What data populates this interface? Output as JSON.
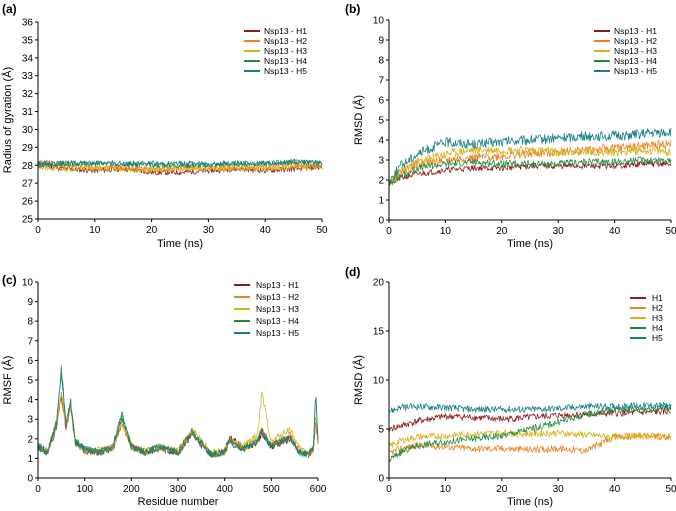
{
  "colors": {
    "H1": "#8b1a1a",
    "H2": "#f07f1e",
    "H3": "#d4b21c",
    "H4": "#1e8a3a",
    "H5": "#177f86"
  },
  "chart_data": [
    {
      "id": "a",
      "panel_label": "(a)",
      "type": "line",
      "title": "",
      "xlabel": "Time (ns)",
      "ylabel": "Radius of gyration (Å)",
      "xlim": [
        0,
        50
      ],
      "ylim": [
        25,
        36
      ],
      "xticks": [
        "0",
        "10",
        "20",
        "30",
        "40",
        "50"
      ],
      "yticks": [
        "25",
        "26",
        "27",
        "28",
        "29",
        "30",
        "31",
        "32",
        "33",
        "34",
        "35",
        "36"
      ],
      "legend_position": "top-right",
      "series": [
        {
          "name": "Nsp13 - H1",
          "color_key": "H1",
          "x": [
            0,
            5,
            10,
            15,
            20,
            25,
            30,
            35,
            40,
            45,
            50
          ],
          "values": [
            28.0,
            27.8,
            27.7,
            27.8,
            27.6,
            27.6,
            27.7,
            27.8,
            27.7,
            27.8,
            27.9
          ],
          "noise": 0.15,
          "seed": 11
        },
        {
          "name": "Nsp13 - H2",
          "color_key": "H2",
          "x": [
            0,
            5,
            10,
            15,
            20,
            25,
            30,
            35,
            40,
            45,
            50
          ],
          "values": [
            28.2,
            28.0,
            27.9,
            27.9,
            27.8,
            27.9,
            27.9,
            27.9,
            27.9,
            28.0,
            28.0
          ],
          "noise": 0.15,
          "seed": 12
        },
        {
          "name": "Nsp13 - H3",
          "color_key": "H3",
          "x": [
            0,
            5,
            10,
            15,
            20,
            25,
            30,
            35,
            40,
            45,
            50
          ],
          "values": [
            27.9,
            27.8,
            27.8,
            27.8,
            27.7,
            27.8,
            27.8,
            27.8,
            27.8,
            27.9,
            27.9
          ],
          "noise": 0.15,
          "seed": 13
        },
        {
          "name": "Nsp13 - H4",
          "color_key": "H4",
          "x": [
            0,
            5,
            10,
            15,
            20,
            25,
            30,
            35,
            40,
            45,
            50
          ],
          "values": [
            28.0,
            28.1,
            28.1,
            28.1,
            28.0,
            28.0,
            28.0,
            28.1,
            28.1,
            28.2,
            28.1
          ],
          "noise": 0.15,
          "seed": 14
        },
        {
          "name": "Nsp13 - H5",
          "color_key": "H5",
          "x": [
            0,
            5,
            10,
            15,
            20,
            25,
            30,
            35,
            40,
            45,
            50
          ],
          "values": [
            28.1,
            28.1,
            28.1,
            28.1,
            28.1,
            28.1,
            28.1,
            28.1,
            28.1,
            28.2,
            28.1
          ],
          "noise": 0.15,
          "seed": 15
        }
      ]
    },
    {
      "id": "b",
      "panel_label": "(b)",
      "type": "line",
      "title": "",
      "xlabel": "Time (ns)",
      "ylabel": "RMSD (Å)",
      "xlim": [
        0,
        50
      ],
      "ylim": [
        0,
        10
      ],
      "xticks": [
        "0",
        "10",
        "20",
        "30",
        "40",
        "50"
      ],
      "yticks": [
        "0",
        "1",
        "2",
        "3",
        "4",
        "5",
        "6",
        "7",
        "8",
        "9",
        "10"
      ],
      "legend_position": "top-right",
      "series": [
        {
          "name": "Nsp13 - H1",
          "color_key": "H1",
          "x": [
            0,
            2,
            5,
            10,
            15,
            20,
            25,
            30,
            35,
            40,
            45,
            50
          ],
          "values": [
            1.8,
            2.1,
            2.3,
            2.5,
            2.6,
            2.6,
            2.7,
            2.7,
            2.7,
            2.7,
            2.8,
            2.8
          ],
          "noise": 0.15,
          "seed": 21
        },
        {
          "name": "Nsp13 - H2",
          "color_key": "H2",
          "x": [
            0,
            2,
            5,
            10,
            15,
            20,
            25,
            30,
            35,
            40,
            45,
            50
          ],
          "values": [
            1.9,
            2.4,
            2.8,
            3.0,
            3.1,
            3.2,
            3.3,
            3.4,
            3.5,
            3.6,
            3.7,
            3.8
          ],
          "noise": 0.22,
          "seed": 22
        },
        {
          "name": "Nsp13 - H3",
          "color_key": "H3",
          "x": [
            0,
            2,
            5,
            10,
            15,
            20,
            25,
            30,
            35,
            40,
            45,
            50
          ],
          "values": [
            1.8,
            2.4,
            2.9,
            3.3,
            3.5,
            3.5,
            3.5,
            3.4,
            3.4,
            3.4,
            3.5,
            3.4
          ],
          "noise": 0.22,
          "seed": 23
        },
        {
          "name": "Nsp13 - H4",
          "color_key": "H4",
          "x": [
            0,
            2,
            5,
            10,
            15,
            20,
            25,
            30,
            35,
            40,
            45,
            50
          ],
          "values": [
            1.8,
            2.2,
            2.6,
            2.8,
            2.9,
            2.8,
            2.8,
            2.8,
            2.9,
            2.9,
            3.0,
            3.0
          ],
          "noise": 0.18,
          "seed": 24
        },
        {
          "name": "Nsp13 - H5",
          "color_key": "H5",
          "x": [
            0,
            2,
            5,
            10,
            15,
            20,
            25,
            30,
            35,
            40,
            45,
            50
          ],
          "values": [
            1.9,
            2.7,
            3.3,
            3.9,
            3.8,
            3.9,
            4.0,
            4.1,
            4.2,
            4.2,
            4.3,
            4.4
          ],
          "noise": 0.25,
          "seed": 25
        }
      ]
    },
    {
      "id": "c",
      "panel_label": "(c)",
      "type": "line",
      "title": "",
      "xlabel": "Residue number",
      "ylabel": "RMSF (Å)",
      "xlim": [
        0,
        600
      ],
      "ylim": [
        0,
        10
      ],
      "xticks": [
        "0",
        "100",
        "200",
        "300",
        "400",
        "500",
        "600"
      ],
      "yticks": [
        "0",
        "1",
        "2",
        "3",
        "4",
        "5",
        "6",
        "7",
        "8",
        "9",
        "10"
      ],
      "legend_position": "top-right",
      "series": [
        {
          "name": "Nsp13 - H1",
          "color_key": "H1",
          "x": [
            0,
            20,
            40,
            50,
            60,
            70,
            80,
            100,
            130,
            160,
            180,
            200,
            230,
            260,
            300,
            330,
            370,
            400,
            410,
            440,
            470,
            480,
            500,
            520,
            540,
            560,
            580,
            590,
            595,
            600
          ],
          "values": [
            1.6,
            1.3,
            2.6,
            4.2,
            2.5,
            3.6,
            1.8,
            1.4,
            1.3,
            1.5,
            2.9,
            1.6,
            1.3,
            1.5,
            1.3,
            2.2,
            1.2,
            1.3,
            2.1,
            1.5,
            1.8,
            2.2,
            1.6,
            1.8,
            2.0,
            1.3,
            1.2,
            1.5,
            2.8,
            1.8
          ],
          "noise": 0.18,
          "seed": 31
        },
        {
          "name": "Nsp13 - H2",
          "color_key": "H2",
          "x": [
            0,
            20,
            40,
            50,
            60,
            70,
            80,
            100,
            130,
            160,
            180,
            200,
            230,
            260,
            300,
            330,
            370,
            400,
            410,
            440,
            470,
            480,
            500,
            520,
            540,
            560,
            580,
            590,
            595,
            600
          ],
          "values": [
            1.7,
            1.3,
            2.8,
            4.4,
            2.6,
            3.8,
            1.9,
            1.5,
            1.3,
            1.6,
            3.0,
            1.6,
            1.3,
            1.6,
            1.3,
            2.3,
            1.2,
            1.3,
            2.0,
            1.5,
            1.9,
            2.5,
            1.7,
            1.9,
            2.2,
            1.4,
            1.2,
            1.5,
            3.0,
            1.8
          ],
          "noise": 0.18,
          "seed": 32
        },
        {
          "name": "Nsp13 - H3",
          "color_key": "H3",
          "x": [
            0,
            20,
            40,
            50,
            60,
            70,
            80,
            100,
            130,
            160,
            180,
            200,
            230,
            260,
            300,
            330,
            370,
            400,
            410,
            440,
            470,
            480,
            500,
            520,
            540,
            560,
            580,
            590,
            595,
            600
          ],
          "values": [
            1.6,
            1.4,
            2.7,
            4.3,
            2.7,
            3.7,
            1.9,
            1.4,
            1.4,
            1.6,
            2.8,
            1.7,
            1.4,
            1.6,
            1.4,
            2.5,
            1.3,
            1.4,
            1.9,
            1.6,
            2.2,
            4.3,
            1.8,
            2.2,
            2.5,
            1.5,
            1.3,
            1.6,
            3.2,
            1.9
          ],
          "noise": 0.18,
          "seed": 33
        },
        {
          "name": "Nsp13 - H4",
          "color_key": "H4",
          "x": [
            0,
            20,
            40,
            50,
            60,
            70,
            80,
            100,
            130,
            160,
            180,
            200,
            230,
            260,
            300,
            330,
            370,
            400,
            410,
            440,
            470,
            480,
            500,
            520,
            540,
            560,
            580,
            590,
            595,
            600
          ],
          "values": [
            1.6,
            1.3,
            2.9,
            5.6,
            2.8,
            3.9,
            1.9,
            1.5,
            1.3,
            1.6,
            3.3,
            1.6,
            1.3,
            1.6,
            1.3,
            2.4,
            1.2,
            1.3,
            1.8,
            1.5,
            1.9,
            2.4,
            1.6,
            1.9,
            2.1,
            1.3,
            1.2,
            1.6,
            4.4,
            1.9
          ],
          "noise": 0.18,
          "seed": 34
        },
        {
          "name": "Nsp13 - H5",
          "color_key": "H5",
          "x": [
            0,
            20,
            40,
            50,
            60,
            70,
            80,
            100,
            130,
            160,
            180,
            200,
            230,
            260,
            300,
            330,
            370,
            400,
            410,
            440,
            470,
            480,
            500,
            520,
            540,
            560,
            580,
            590,
            595,
            600
          ],
          "values": [
            1.7,
            1.3,
            2.8,
            5.4,
            2.7,
            3.8,
            1.9,
            1.5,
            1.3,
            1.6,
            3.1,
            1.6,
            1.3,
            1.6,
            1.3,
            2.3,
            1.2,
            1.3,
            1.9,
            1.5,
            1.9,
            2.3,
            1.6,
            1.9,
            2.1,
            1.3,
            1.2,
            1.6,
            4.2,
            1.9
          ],
          "noise": 0.18,
          "seed": 35
        }
      ]
    },
    {
      "id": "d",
      "panel_label": "(d)",
      "type": "line",
      "title": "",
      "xlabel": "Time (ns)",
      "ylabel": "RMSD (Å)",
      "xlim": [
        0,
        50
      ],
      "ylim": [
        0,
        20
      ],
      "xticks": [
        "0",
        "10",
        "20",
        "30",
        "40",
        "50"
      ],
      "yticks": [
        "0",
        "5",
        "10",
        "15",
        "20"
      ],
      "legend_position": "top-right",
      "series": [
        {
          "name": "H1",
          "color_key": "H1",
          "x": [
            0,
            2,
            5,
            10,
            15,
            20,
            25,
            30,
            35,
            40,
            45,
            50
          ],
          "values": [
            5.0,
            5.3,
            5.8,
            6.3,
            6.2,
            6.0,
            6.2,
            6.4,
            6.5,
            6.6,
            6.7,
            6.8
          ],
          "noise": 0.35,
          "seed": 41
        },
        {
          "name": "H2",
          "color_key": "H2",
          "x": [
            0,
            2,
            5,
            10,
            15,
            20,
            25,
            30,
            35,
            40,
            45,
            50
          ],
          "values": [
            2.5,
            3.0,
            3.3,
            3.2,
            3.0,
            3.0,
            2.9,
            3.0,
            2.8,
            4.2,
            4.3,
            4.2
          ],
          "noise": 0.35,
          "seed": 42
        },
        {
          "name": "H3",
          "color_key": "H3",
          "x": [
            0,
            2,
            5,
            10,
            15,
            20,
            25,
            30,
            35,
            40,
            45,
            50
          ],
          "values": [
            3.2,
            3.8,
            4.2,
            4.3,
            4.5,
            4.6,
            4.5,
            4.6,
            4.4,
            4.2,
            4.3,
            4.2
          ],
          "noise": 0.35,
          "seed": 43
        },
        {
          "name": "H4",
          "color_key": "H4",
          "x": [
            0,
            2,
            5,
            10,
            15,
            20,
            25,
            30,
            35,
            40,
            45,
            50
          ],
          "values": [
            1.8,
            2.6,
            3.3,
            3.7,
            4.0,
            4.3,
            5.0,
            5.7,
            6.5,
            7.0,
            7.1,
            7.2
          ],
          "noise": 0.35,
          "seed": 44
        },
        {
          "name": "H5",
          "color_key": "H5",
          "x": [
            0,
            2,
            5,
            10,
            15,
            20,
            25,
            30,
            35,
            40,
            45,
            50
          ],
          "values": [
            6.8,
            7.2,
            7.3,
            7.2,
            7.0,
            7.0,
            7.0,
            7.1,
            7.3,
            7.3,
            7.4,
            7.4
          ],
          "noise": 0.35,
          "seed": 45
        }
      ]
    }
  ]
}
